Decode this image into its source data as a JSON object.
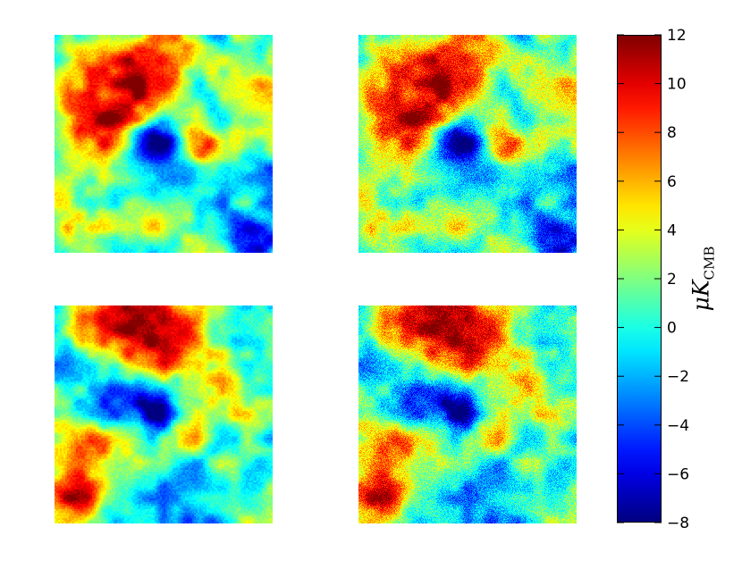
{
  "chart_data": {
    "type": "heatmap",
    "panels": [
      {
        "name": "",
        "blue_spot": true,
        "high_res": false
      },
      {
        "name": "",
        "blue_spot": true,
        "high_res": true
      },
      {
        "name": "",
        "blue_spot": true,
        "high_res": false
      },
      {
        "name": "",
        "blue_spot": true,
        "high_res": true
      }
    ],
    "colormap": "jet",
    "vmin": -8,
    "vmax": 12,
    "colorbar_ticks": [
      "12",
      "10",
      "8",
      "6",
      "4",
      "2",
      "0",
      "−2",
      "−4",
      "−6",
      "−8"
    ],
    "colorbar_label_symbol": "μK",
    "colorbar_label_subscript": "CMB",
    "colorbar_placement": "right"
  }
}
